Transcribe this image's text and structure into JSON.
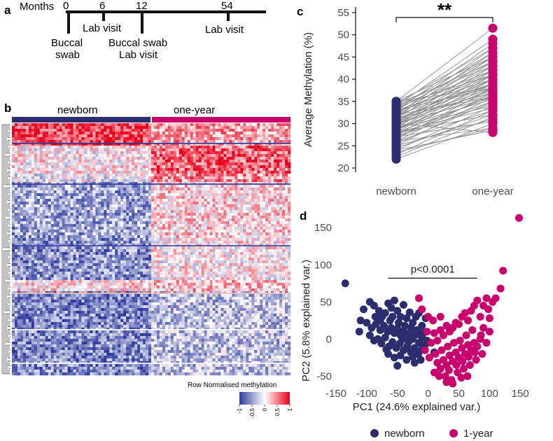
{
  "panels": {
    "a": "a",
    "b": "b",
    "c": "c",
    "d": "d"
  },
  "timeline": {
    "months_label": "Months",
    "ticks": [
      {
        "month": 0,
        "label": "0"
      },
      {
        "month": 6,
        "label": "6"
      },
      {
        "month": 12,
        "label": "12"
      },
      {
        "month": 54,
        "label": "54"
      }
    ],
    "events": {
      "e0": "Buccal",
      "e0b": "swab",
      "e6": "Lab visit",
      "e12": "Buccal swab",
      "e12b": "Lab visit",
      "e54": "Lab visit"
    }
  },
  "heatmap": {
    "group_labels": [
      "newborn",
      "one-year"
    ],
    "group_colors": [
      "#2b2d6e",
      "#c8006e"
    ],
    "legend": {
      "title": "Row Normalised methylation",
      "ticks": [
        "-1",
        "-0.5",
        "0",
        "0.5",
        "1"
      ],
      "colors": [
        "#2d3a9c",
        "#ffffff",
        "#e8001a"
      ]
    }
  },
  "chart_data": [
    {
      "panel": "c",
      "type": "scatter",
      "subtype": "paired-dot",
      "title": "",
      "xlabel": "",
      "ylabel": "Average Methylation (%)",
      "categories": [
        "newborn",
        "one-year"
      ],
      "ylim": [
        20,
        55
      ],
      "yticks": [
        20,
        25,
        30,
        35,
        40,
        45,
        50,
        55
      ],
      "significance": "**",
      "series": [
        {
          "name": "newborn",
          "color": "#2b2d6e",
          "range": [
            22,
            35
          ]
        },
        {
          "name": "one-year",
          "color": "#c8006e",
          "range": [
            28,
            51.5
          ]
        }
      ],
      "pairs": [
        [
          22,
          30
        ],
        [
          22.5,
          31.5
        ],
        [
          23,
          33
        ],
        [
          23.5,
          29
        ],
        [
          24,
          34
        ],
        [
          24.5,
          32
        ],
        [
          25,
          36
        ],
        [
          25,
          31
        ],
        [
          25.5,
          35
        ],
        [
          26,
          37
        ],
        [
          26,
          33
        ],
        [
          26.5,
          38
        ],
        [
          27,
          34.5
        ],
        [
          27,
          36.5
        ],
        [
          27.5,
          39
        ],
        [
          27.5,
          35
        ],
        [
          28,
          40
        ],
        [
          28,
          36
        ],
        [
          28,
          32
        ],
        [
          28.5,
          41
        ],
        [
          28.5,
          38
        ],
        [
          29,
          37
        ],
        [
          29,
          42
        ],
        [
          29,
          34
        ],
        [
          29.5,
          39
        ],
        [
          29.5,
          43
        ],
        [
          30,
          40
        ],
        [
          30,
          36
        ],
        [
          30,
          44
        ],
        [
          30,
          28
        ],
        [
          30.5,
          41
        ],
        [
          30.5,
          38
        ],
        [
          31,
          45
        ],
        [
          31,
          40
        ],
        [
          31,
          37
        ],
        [
          31.5,
          42
        ],
        [
          31.5,
          46
        ],
        [
          32,
          43
        ],
        [
          32,
          39
        ],
        [
          32,
          47
        ],
        [
          32.5,
          41
        ],
        [
          32.5,
          44
        ],
        [
          33,
          45
        ],
        [
          33,
          40
        ],
        [
          33,
          48
        ],
        [
          33.5,
          42
        ],
        [
          33.5,
          46
        ],
        [
          34,
          44
        ],
        [
          34,
          49
        ],
        [
          34,
          41
        ],
        [
          34.5,
          47
        ],
        [
          34.5,
          43
        ],
        [
          35,
          51.5
        ],
        [
          35,
          45
        ],
        [
          35,
          38
        ],
        [
          26,
          29
        ],
        [
          27,
          30.5
        ],
        [
          28,
          33.5
        ],
        [
          29,
          35.5
        ],
        [
          30,
          37.5
        ],
        [
          31,
          39
        ],
        [
          32,
          36
        ],
        [
          33,
          38
        ],
        [
          24,
          28.5
        ]
      ]
    },
    {
      "panel": "d",
      "type": "scatter",
      "title": "",
      "xlabel": "PC1 (24.6% explained var.)",
      "ylabel": "PC2 (5.8% explained var.)",
      "xlim": [
        -150,
        160
      ],
      "ylim": [
        -60,
        170
      ],
      "xticks": [
        -150,
        -100,
        -50,
        0,
        50,
        100,
        150
      ],
      "yticks": [
        -50,
        0,
        50,
        100,
        150
      ],
      "annotation": "p<0.0001",
      "annotation_range": [
        -65,
        80
      ],
      "annotation_y": 82,
      "legend": {
        "position": "bottom",
        "entries": [
          "newborn",
          "1-year"
        ]
      },
      "series": [
        {
          "name": "newborn",
          "color": "#2b2d6e",
          "points": [
            [
              -135,
              75
            ],
            [
              -105,
              40
            ],
            [
              -95,
              50
            ],
            [
              -88,
              45
            ],
            [
              -80,
              38
            ],
            [
              -75,
              30
            ],
            [
              -70,
              35
            ],
            [
              -65,
              48
            ],
            [
              -60,
              42
            ],
            [
              -55,
              52
            ],
            [
              -50,
              38
            ],
            [
              -45,
              30
            ],
            [
              -40,
              46
            ],
            [
              -35,
              28
            ],
            [
              -30,
              36
            ],
            [
              -25,
              22
            ],
            [
              -20,
              30
            ],
            [
              -15,
              35
            ],
            [
              -10,
              18
            ],
            [
              -100,
              22
            ],
            [
              -92,
              15
            ],
            [
              -85,
              20
            ],
            [
              -78,
              12
            ],
            [
              -72,
              18
            ],
            [
              -66,
              10
            ],
            [
              -60,
              15
            ],
            [
              -55,
              8
            ],
            [
              -50,
              14
            ],
            [
              -45,
              5
            ],
            [
              -40,
              10
            ],
            [
              -35,
              2
            ],
            [
              -30,
              8
            ],
            [
              -25,
              0
            ],
            [
              -20,
              6
            ],
            [
              -15,
              -5
            ],
            [
              -10,
              2
            ],
            [
              -5,
              -8
            ],
            [
              -82,
              0
            ],
            [
              -76,
              -6
            ],
            [
              -70,
              2
            ],
            [
              -64,
              -10
            ],
            [
              -58,
              -4
            ],
            [
              -52,
              -12
            ],
            [
              -46,
              -6
            ],
            [
              -40,
              -15
            ],
            [
              -34,
              -10
            ],
            [
              -28,
              -18
            ],
            [
              -22,
              -12
            ],
            [
              -16,
              -20
            ],
            [
              -10,
              -14
            ],
            [
              -65,
              -20
            ],
            [
              -55,
              -25
            ],
            [
              -45,
              -22
            ],
            [
              -35,
              -28
            ],
            [
              -25,
              -24
            ],
            [
              -95,
              5
            ],
            [
              -88,
              -2
            ],
            [
              -110,
              25
            ],
            [
              -112,
              10
            ],
            [
              -62,
              25
            ],
            [
              -48,
              22
            ],
            [
              -38,
              18
            ],
            [
              -28,
              15
            ],
            [
              -18,
              12
            ],
            [
              -8,
              8
            ],
            [
              -2,
              -2
            ],
            [
              10,
              -18
            ],
            [
              -4,
              28
            ],
            [
              -12,
              -28
            ],
            [
              -68,
              -14
            ],
            [
              -58,
              30
            ],
            [
              -42,
              0
            ],
            [
              -32,
              -4
            ],
            [
              -22,
              -32
            ],
            [
              -50,
              -36
            ],
            [
              -78,
              25
            ],
            [
              -86,
              30
            ]
          ]
        },
        {
          "name": "1-year",
          "color": "#c8006e",
          "points": [
            [
              148,
              163
            ],
            [
              122,
              92
            ],
            [
              118,
              68
            ],
            [
              105,
              50
            ],
            [
              98,
              40
            ],
            [
              95,
              55
            ],
            [
              90,
              45
            ],
            [
              85,
              30
            ],
            [
              80,
              52
            ],
            [
              75,
              45
            ],
            [
              70,
              38
            ],
            [
              65,
              25
            ],
            [
              60,
              35
            ],
            [
              55,
              30
            ],
            [
              50,
              20
            ],
            [
              45,
              22
            ],
            [
              40,
              15
            ],
            [
              35,
              10
            ],
            [
              30,
              18
            ],
            [
              25,
              5
            ],
            [
              20,
              12
            ],
            [
              15,
              -2
            ],
            [
              10,
              8
            ],
            [
              5,
              -5
            ],
            [
              0,
              30
            ],
            [
              -10,
              40
            ],
            [
              -5,
              -15
            ],
            [
              -15,
              55
            ],
            [
              85,
              0
            ],
            [
              80,
              -10
            ],
            [
              75,
              -5
            ],
            [
              70,
              -15
            ],
            [
              65,
              -8
            ],
            [
              60,
              -20
            ],
            [
              55,
              -12
            ],
            [
              50,
              -25
            ],
            [
              45,
              -18
            ],
            [
              40,
              -30
            ],
            [
              35,
              -22
            ],
            [
              30,
              -35
            ],
            [
              25,
              -28
            ],
            [
              20,
              -40
            ],
            [
              15,
              -32
            ],
            [
              10,
              -45
            ],
            [
              28,
              -50
            ],
            [
              38,
              -55
            ],
            [
              48,
              -45
            ],
            [
              58,
              -40
            ],
            [
              68,
              -35
            ],
            [
              78,
              -28
            ],
            [
              88,
              -20
            ],
            [
              95,
              -5
            ],
            [
              100,
              10
            ],
            [
              90,
              15
            ],
            [
              62,
              5
            ],
            [
              52,
              -2
            ],
            [
              42,
              -5
            ],
            [
              32,
              -10
            ],
            [
              22,
              -15
            ],
            [
              12,
              -20
            ],
            [
              2,
              -25
            ],
            [
              18,
              -50
            ],
            [
              34,
              -42
            ],
            [
              46,
              -35
            ],
            [
              56,
              -30
            ],
            [
              66,
              -24
            ],
            [
              76,
              -18
            ],
            [
              86,
              5
            ],
            [
              72,
              12
            ],
            [
              64,
              -50
            ],
            [
              40,
              -60
            ],
            [
              30,
              -58
            ],
            [
              54,
              -52
            ],
            [
              100,
              28
            ],
            [
              110,
              55
            ],
            [
              20,
              30
            ],
            [
              8,
              25
            ],
            [
              -2,
              10
            ]
          ]
        }
      ]
    }
  ]
}
